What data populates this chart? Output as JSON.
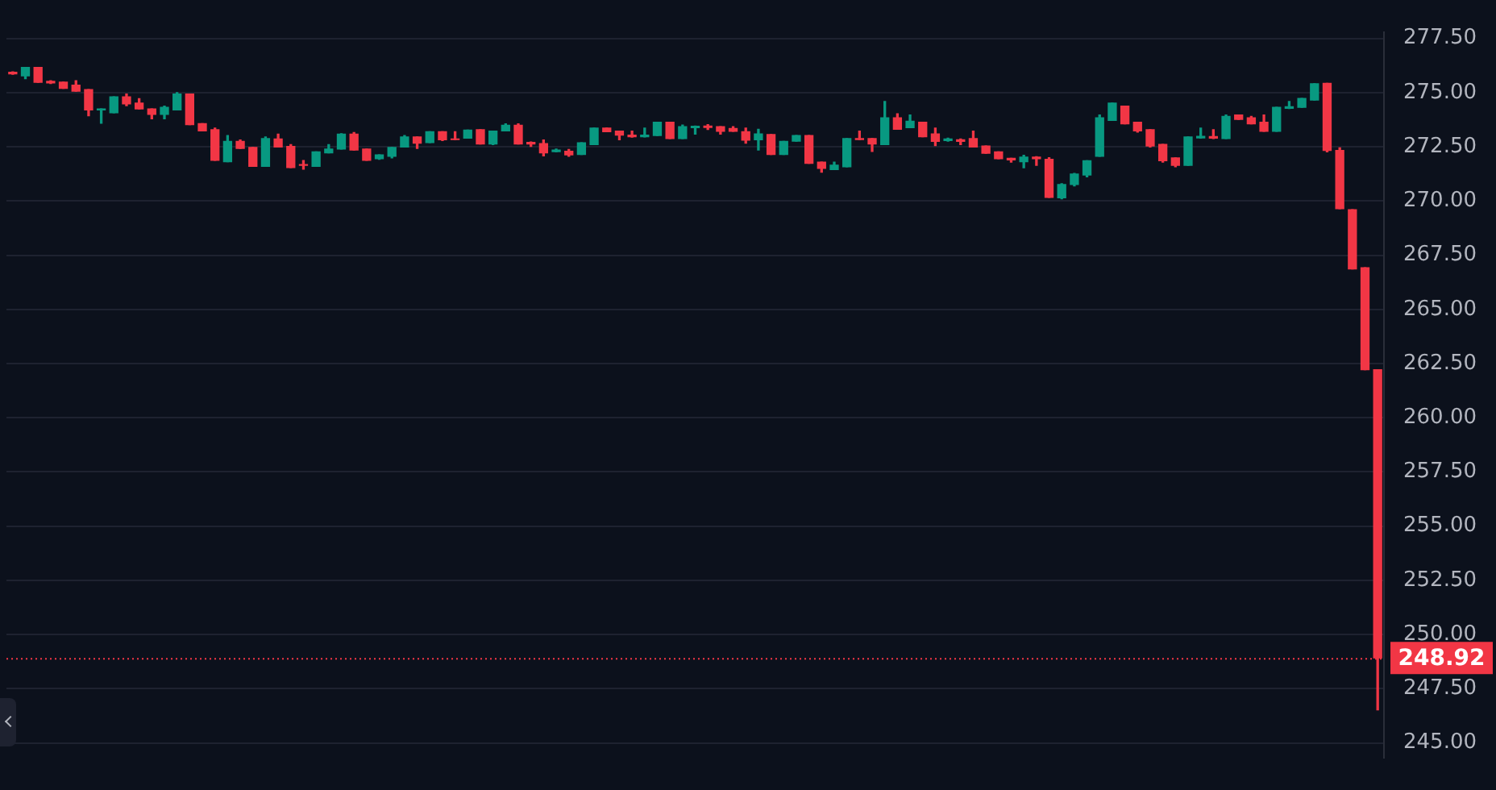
{
  "chart_data": {
    "type": "candlestick",
    "categories": [
      null,
      null,
      null,
      null,
      null,
      null,
      null,
      null,
      null,
      null,
      null,
      null,
      null,
      null,
      null,
      null,
      null,
      null,
      null,
      null,
      null,
      null,
      null,
      null,
      null,
      null,
      null,
      null,
      null,
      null,
      null,
      null,
      null,
      null,
      null,
      null,
      null,
      null,
      null,
      null,
      null,
      null,
      null,
      null,
      null,
      null,
      null,
      null,
      null,
      null,
      null,
      null,
      null,
      null,
      null,
      null,
      null,
      null,
      null,
      null,
      null,
      null,
      null,
      null,
      null,
      null,
      null,
      null,
      null,
      null,
      null,
      null,
      null,
      null,
      null,
      null,
      null,
      null,
      null,
      null,
      null,
      null,
      null,
      null,
      null,
      null,
      null,
      null,
      null,
      null,
      null,
      null,
      null,
      null,
      null,
      null,
      null,
      null,
      null,
      null,
      null,
      null,
      null,
      null,
      null,
      null,
      null,
      null,
      null
    ],
    "ohlc": [
      [
        275.94,
        275.96,
        275.85,
        275.87
      ],
      [
        275.77,
        276.16,
        275.64,
        276.16
      ],
      [
        276.16,
        276.16,
        275.48,
        275.48
      ],
      [
        275.52,
        275.55,
        275.42,
        275.45
      ],
      [
        275.48,
        275.48,
        275.2,
        275.2
      ],
      [
        275.34,
        275.55,
        275.07,
        275.07
      ],
      [
        275.14,
        275.14,
        273.93,
        274.2
      ],
      [
        274.2,
        274.25,
        273.59,
        274.25
      ],
      [
        274.07,
        274.8,
        274.07,
        274.8
      ],
      [
        274.8,
        274.93,
        274.4,
        274.48
      ],
      [
        274.52,
        274.72,
        274.25,
        274.25
      ],
      [
        274.25,
        274.25,
        273.79,
        274.0
      ],
      [
        274.0,
        274.38,
        273.79,
        274.32
      ],
      [
        274.2,
        275.0,
        274.2,
        274.93
      ],
      [
        274.93,
        274.93,
        273.52,
        273.52
      ],
      [
        273.57,
        273.57,
        273.24,
        273.24
      ],
      [
        273.29,
        273.36,
        271.88,
        271.88
      ],
      [
        271.81,
        273.02,
        271.81,
        272.75
      ],
      [
        272.75,
        272.81,
        272.43,
        272.43
      ],
      [
        272.47,
        272.47,
        271.6,
        271.6
      ],
      [
        271.6,
        272.95,
        271.6,
        272.88
      ],
      [
        272.86,
        273.08,
        272.49,
        272.49
      ],
      [
        272.52,
        272.6,
        271.54,
        271.54
      ],
      [
        271.68,
        271.87,
        271.47,
        271.65
      ],
      [
        271.6,
        272.27,
        271.6,
        272.27
      ],
      [
        272.22,
        272.6,
        272.22,
        272.4
      ],
      [
        272.4,
        273.1,
        272.4,
        273.08
      ],
      [
        273.08,
        273.16,
        272.35,
        272.35
      ],
      [
        272.4,
        272.4,
        271.88,
        271.88
      ],
      [
        271.95,
        272.13,
        271.92,
        272.13
      ],
      [
        272.06,
        272.47,
        271.99,
        272.47
      ],
      [
        272.49,
        273.02,
        272.49,
        272.95
      ],
      [
        272.95,
        272.95,
        272.43,
        272.67
      ],
      [
        272.7,
        273.2,
        272.7,
        273.2
      ],
      [
        273.2,
        273.2,
        272.79,
        272.83
      ],
      [
        272.86,
        273.2,
        272.84,
        272.84
      ],
      [
        272.9,
        273.27,
        272.9,
        273.27
      ],
      [
        273.29,
        273.29,
        272.63,
        272.63
      ],
      [
        272.63,
        273.22,
        272.6,
        273.22
      ],
      [
        273.24,
        273.56,
        273.24,
        273.49
      ],
      [
        273.49,
        273.56,
        272.63,
        272.63
      ],
      [
        272.7,
        272.72,
        272.52,
        272.63
      ],
      [
        272.65,
        272.81,
        272.08,
        272.22
      ],
      [
        272.28,
        272.4,
        272.27,
        272.35
      ],
      [
        272.29,
        272.38,
        272.06,
        272.13
      ],
      [
        272.15,
        272.68,
        272.15,
        272.68
      ],
      [
        272.6,
        273.36,
        272.6,
        273.36
      ],
      [
        273.36,
        273.36,
        273.2,
        273.2
      ],
      [
        273.22,
        273.22,
        272.83,
        273.04
      ],
      [
        273.04,
        273.22,
        272.95,
        272.97
      ],
      [
        272.97,
        273.36,
        272.96,
        273.04
      ],
      [
        273.02,
        273.63,
        273.02,
        273.63
      ],
      [
        273.63,
        273.63,
        272.88,
        272.88
      ],
      [
        272.88,
        273.5,
        272.88,
        273.43
      ],
      [
        273.38,
        273.46,
        273.09,
        273.45
      ],
      [
        273.46,
        273.52,
        273.3,
        273.39
      ],
      [
        273.43,
        273.43,
        273.09,
        273.22
      ],
      [
        273.34,
        273.43,
        273.22,
        273.22
      ],
      [
        273.2,
        273.36,
        272.67,
        272.81
      ],
      [
        272.83,
        273.31,
        272.35,
        273.09
      ],
      [
        273.07,
        273.07,
        272.15,
        272.15
      ],
      [
        272.15,
        272.75,
        272.15,
        272.75
      ],
      [
        272.76,
        273.02,
        272.76,
        273.02
      ],
      [
        273.02,
        273.02,
        271.74,
        271.74
      ],
      [
        271.79,
        271.79,
        271.33,
        271.51
      ],
      [
        271.45,
        271.79,
        271.45,
        271.65
      ],
      [
        271.58,
        272.88,
        271.58,
        272.88
      ],
      [
        272.88,
        273.22,
        272.84,
        272.84
      ],
      [
        272.88,
        272.88,
        272.29,
        272.63
      ],
      [
        272.6,
        274.59,
        272.6,
        273.84
      ],
      [
        273.84,
        274.02,
        273.31,
        273.31
      ],
      [
        273.38,
        273.97,
        273.38,
        273.68
      ],
      [
        273.63,
        273.63,
        272.97,
        272.97
      ],
      [
        273.09,
        273.36,
        272.56,
        272.75
      ],
      [
        272.79,
        272.9,
        272.76,
        272.86
      ],
      [
        272.82,
        272.86,
        272.6,
        272.75
      ],
      [
        272.88,
        273.22,
        272.49,
        272.49
      ],
      [
        272.54,
        272.54,
        272.2,
        272.2
      ],
      [
        272.27,
        272.27,
        271.95,
        271.95
      ],
      [
        271.97,
        271.97,
        271.79,
        271.9
      ],
      [
        271.81,
        272.11,
        271.53,
        272.02
      ],
      [
        272.02,
        272.04,
        271.65,
        271.95
      ],
      [
        271.92,
        272.0,
        270.17,
        270.17
      ],
      [
        270.15,
        270.8,
        270.1,
        270.76
      ],
      [
        270.76,
        271.27,
        270.7,
        271.24
      ],
      [
        271.2,
        271.86,
        271.12,
        271.86
      ],
      [
        272.06,
        273.97,
        272.06,
        273.84
      ],
      [
        273.72,
        274.52,
        273.72,
        274.52
      ],
      [
        274.38,
        274.38,
        273.56,
        273.56
      ],
      [
        273.63,
        273.63,
        273.18,
        273.24
      ],
      [
        273.29,
        273.29,
        272.49,
        272.54
      ],
      [
        272.61,
        272.61,
        271.79,
        271.86
      ],
      [
        271.99,
        271.99,
        271.58,
        271.65
      ],
      [
        271.65,
        272.95,
        271.65,
        272.95
      ],
      [
        272.91,
        273.36,
        272.9,
        272.98
      ],
      [
        272.97,
        273.29,
        272.88,
        272.9
      ],
      [
        272.88,
        273.97,
        272.88,
        273.9
      ],
      [
        273.97,
        273.97,
        273.77,
        273.77
      ],
      [
        273.84,
        273.9,
        273.56,
        273.56
      ],
      [
        273.63,
        273.97,
        273.22,
        273.22
      ],
      [
        273.22,
        274.32,
        273.22,
        274.32
      ],
      [
        274.28,
        274.59,
        274.27,
        274.35
      ],
      [
        274.32,
        274.73,
        274.32,
        274.73
      ],
      [
        274.66,
        275.41,
        274.66,
        275.41
      ],
      [
        275.43,
        275.43,
        272.27,
        272.33
      ],
      [
        272.33,
        272.45,
        269.65,
        269.65
      ],
      [
        269.6,
        269.6,
        266.87,
        266.87
      ],
      [
        266.92,
        266.92,
        262.22,
        262.22
      ],
      [
        262.22,
        262.22,
        246.52,
        248.92
      ]
    ],
    "colors": [
      "#f23645",
      "#089981",
      "#f23645",
      "#f23645",
      "#f23645",
      "#f23645",
      "#f23645",
      "#089981",
      "#089981",
      "#f23645",
      "#f23645",
      "#f23645",
      "#089981",
      "#089981",
      "#f23645",
      "#f23645",
      "#f23645",
      "#089981",
      "#f23645",
      "#f23645",
      "#089981",
      "#f23645",
      "#f23645",
      "#f23645",
      "#089981",
      "#089981",
      "#089981",
      "#f23645",
      "#f23645",
      "#089981",
      "#089981",
      "#089981",
      "#f23645",
      "#089981",
      "#f23645",
      "#f23645",
      "#089981",
      "#f23645",
      "#089981",
      "#089981",
      "#f23645",
      "#f23645",
      "#f23645",
      "#089981",
      "#f23645",
      "#089981",
      "#089981",
      "#f23645",
      "#f23645",
      "#f23645",
      "#089981",
      "#089981",
      "#f23645",
      "#089981",
      "#089981",
      "#f23645",
      "#f23645",
      "#f23645",
      "#f23645",
      "#089981",
      "#f23645",
      "#089981",
      "#089981",
      "#f23645",
      "#f23645",
      "#089981",
      "#089981",
      "#f23645",
      "#f23645",
      "#089981",
      "#f23645",
      "#089981",
      "#f23645",
      "#f23645",
      "#089981",
      "#f23645",
      "#f23645",
      "#f23645",
      "#f23645",
      "#f23645",
      "#089981",
      "#f23645",
      "#f23645",
      "#089981",
      "#089981",
      "#089981",
      "#089981",
      "#089981",
      "#f23645",
      "#f23645",
      "#f23645",
      "#f23645",
      "#f23645",
      "#089981",
      "#089981",
      "#f23645",
      "#089981",
      "#f23645",
      "#f23645",
      "#f23645",
      "#089981",
      "#089981",
      "#089981",
      "#089981",
      "#f23645",
      "#f23645",
      "#f23645",
      "#f23645",
      "#f23645"
    ],
    "ylim": [
      244.3,
      277.8
    ],
    "yticks": [
      {
        "value": 245,
        "label": "245.00"
      },
      {
        "value": 247.5,
        "label": "247.50"
      },
      {
        "value": 250,
        "label": "250.00"
      },
      {
        "value": 252.5,
        "label": "252.50"
      },
      {
        "value": 255,
        "label": "255.00"
      },
      {
        "value": 257.5,
        "label": "257.50"
      },
      {
        "value": 260,
        "label": "260.00"
      },
      {
        "value": 262.5,
        "label": "262.50"
      },
      {
        "value": 265,
        "label": "265.00"
      },
      {
        "value": 267.5,
        "label": "267.50"
      },
      {
        "value": 270,
        "label": "270.00"
      },
      {
        "value": 272.5,
        "label": "272.50"
      },
      {
        "value": 275,
        "label": "275.00"
      },
      {
        "value": 277.5,
        "label": "277.50"
      }
    ],
    "grid": "y",
    "tick_labels": "y",
    "ref_lines": [
      {
        "axis": "y",
        "value": 248.92,
        "label": "248.92",
        "color": "#f23645",
        "line_style": "dotted"
      }
    ]
  }
}
